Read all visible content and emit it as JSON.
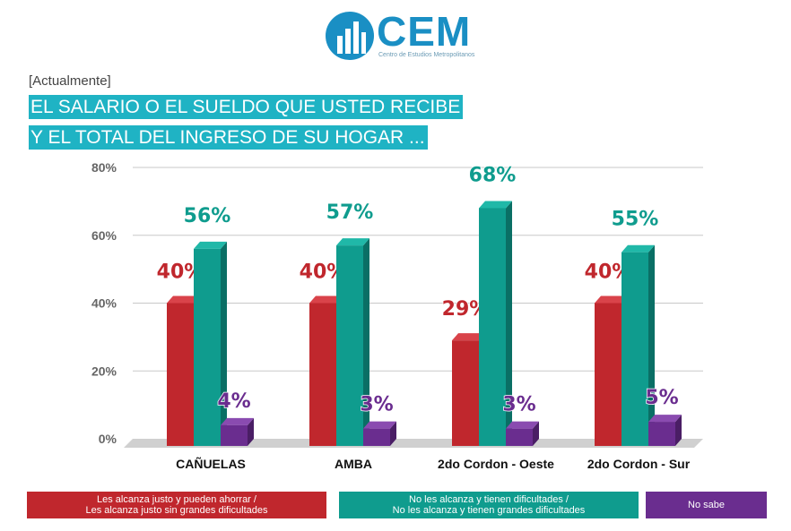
{
  "logo": {
    "text": "CEM",
    "subtitle": "Centro de Estudios Metropolitanos"
  },
  "header": {
    "kicker": "[Actualmente]",
    "title_line1": "EL SALARIO O EL SUELDO QUE USTED RECIBE",
    "title_line2": "Y EL TOTAL DEL INGRESO DE SU HOGAR ..."
  },
  "colors": {
    "red": "#c0272d",
    "teal": "#0f9c8e",
    "purple": "#6a2d8f",
    "brand": "#1a8fc4",
    "title_bg": "#1fb3c4"
  },
  "chart_data": {
    "type": "bar",
    "categories": [
      "CAÑUELAS",
      "AMBA",
      "2do Cordon - Oeste",
      "2do Cordon - Sur"
    ],
    "series": [
      {
        "name": "Les alcanza justo y pueden ahorrar / Les alcanza justo sin grandes dificultades",
        "values": [
          40,
          40,
          29,
          40
        ],
        "labels": [
          "40%",
          "40%",
          "29%",
          "40%"
        ]
      },
      {
        "name": "No les alcanza y tienen dificultades / No les alcanza y tienen grandes dificultades",
        "values": [
          56,
          57,
          68,
          55
        ],
        "labels": [
          "56%",
          "57%",
          "68%",
          "55%"
        ]
      },
      {
        "name": "No sabe",
        "values": [
          4,
          3,
          3,
          5
        ],
        "labels": [
          "4%",
          "3%",
          "3%",
          "5%"
        ]
      }
    ],
    "yticks": [
      "0%",
      "20%",
      "40%",
      "60%",
      "80%"
    ],
    "ylim": [
      0,
      80
    ],
    "grid": true,
    "legend_position": "bottom"
  },
  "legend": [
    {
      "line1": "Les alcanza justo y pueden ahorrar /",
      "line2": "Les alcanza justo sin grandes dificultades",
      "color": "#c0272d"
    },
    {
      "line1": "No les alcanza y tienen dificultades /",
      "line2": "No les alcanza y tienen grandes dificultades",
      "color": "#0f9c8e"
    },
    {
      "line1": "No sabe",
      "line2": "",
      "color": "#6a2d8f"
    }
  ]
}
